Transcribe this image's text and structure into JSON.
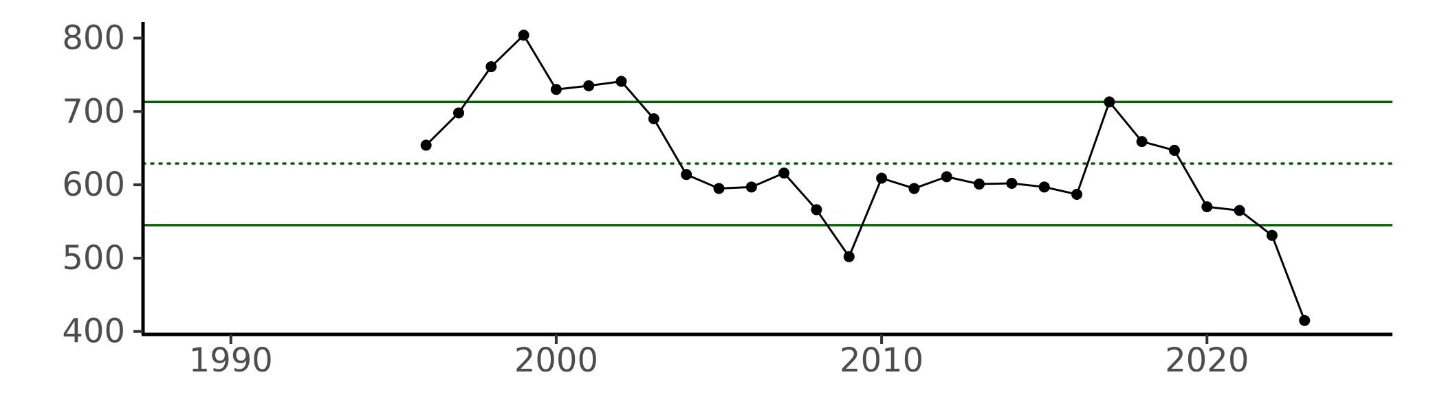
{
  "chart_data": {
    "type": "line",
    "title": "",
    "xlabel": "",
    "ylabel": "",
    "xlim": [
      1987.3,
      2025.7
    ],
    "ylim": [
      396,
      822
    ],
    "x_ticks": [
      1990,
      2000,
      2010,
      2020
    ],
    "y_ticks": [
      400,
      500,
      600,
      700,
      800
    ],
    "x_tick_labels": [
      "1990",
      "2000",
      "2010",
      "2020"
    ],
    "y_tick_labels": [
      "400",
      "500",
      "600",
      "700",
      "800"
    ],
    "grid": false,
    "legend": "none",
    "reference_lines": [
      {
        "y": 713,
        "style": "solid",
        "color": "#006400"
      },
      {
        "y": 629,
        "style": "dotted",
        "color": "#006400"
      },
      {
        "y": 545,
        "style": "solid",
        "color": "#006400"
      }
    ],
    "series": [
      {
        "color": "#000000",
        "x": [
          1996,
          1997,
          1998,
          1999,
          2000,
          2001,
          2002,
          2003,
          2004,
          2005,
          2006,
          2007,
          2008,
          2009,
          2010,
          2011,
          2012,
          2013,
          2014,
          2015,
          2016,
          2017,
          2018,
          2019,
          2020,
          2021,
          2022,
          2023
        ],
        "y": [
          654,
          698,
          761,
          804,
          730,
          735,
          741,
          690,
          614,
          595,
          597,
          616,
          566,
          502,
          609,
          595,
          611,
          601,
          602,
          597,
          587,
          713,
          659,
          647,
          570,
          565,
          531,
          415
        ]
      }
    ]
  }
}
